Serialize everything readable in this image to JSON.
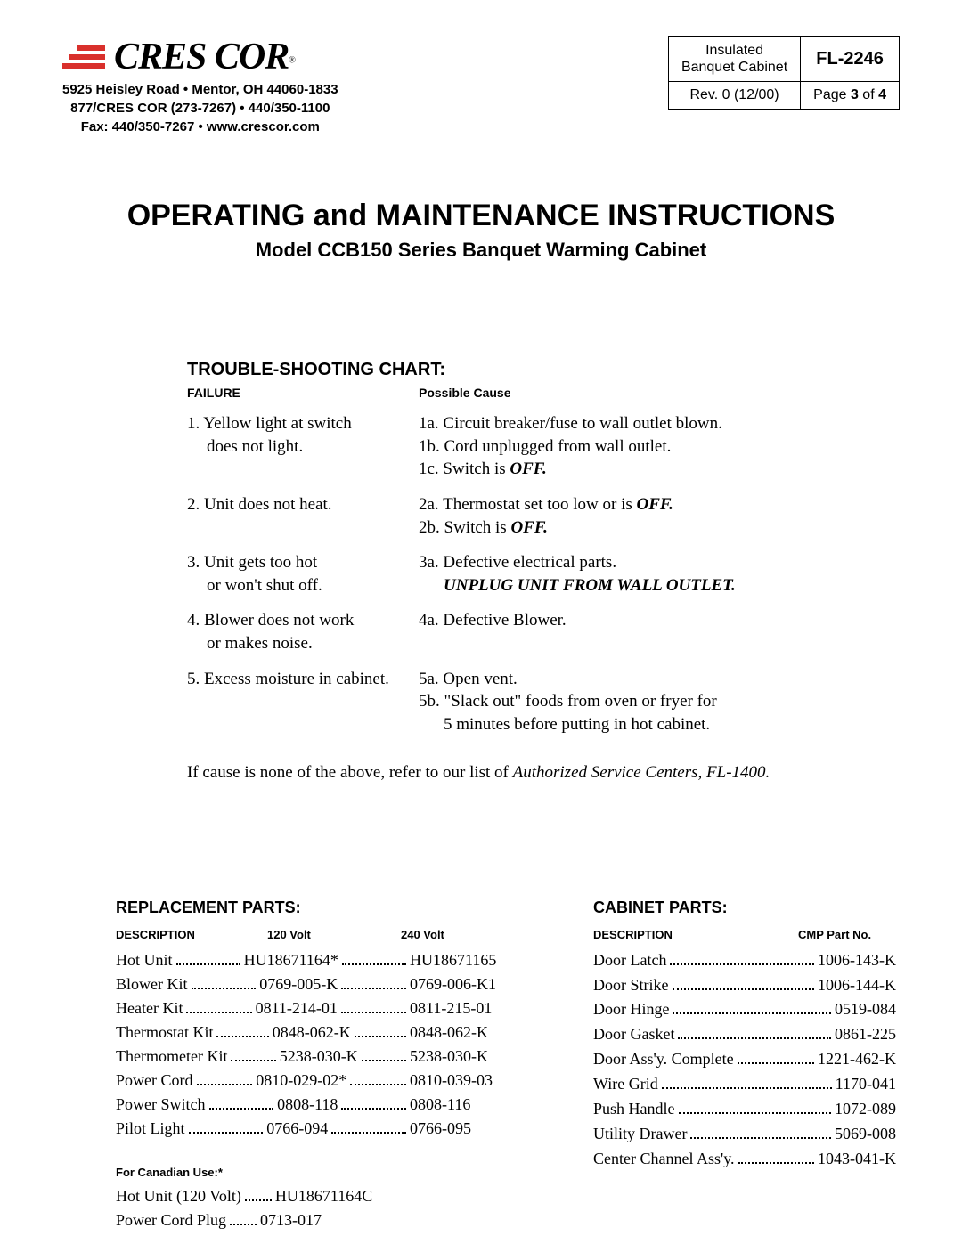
{
  "company": {
    "name": "CRES COR",
    "reg": "®",
    "addr1": "5925 Heisley Road • Mentor, OH 44060-1833",
    "addr2": "877/CRES COR (273-7267) • 440/350-1100",
    "addr3": "Fax: 440/350-7267 • www.crescor.com"
  },
  "docbox": {
    "product": "Insulated\nBanquet Cabinet",
    "doc_no": "FL-2246",
    "rev": "Rev. 0 (12/00)",
    "page": "Page 3 of 4"
  },
  "title": {
    "main": "OPERATING and MAINTENANCE INSTRUCTIONS",
    "sub": "Model CCB150 Series Banquet Warming Cabinet"
  },
  "ts": {
    "heading": "TROUBLE-SHOOTING CHART:",
    "col_failure": "FAILURE",
    "col_cause": "Possible Cause",
    "rows": [
      {
        "fail_a": "1. Yellow light at switch",
        "fail_b": "does not light.",
        "causes": [
          "1a. Circuit breaker/fuse to wall outlet blown.",
          "1b. Cord unplugged from wall outlet.",
          "1c. Switch is "
        ],
        "off3": "OFF."
      },
      {
        "fail_a": "2. Unit does not heat.",
        "causes": [
          "2a. Thermostat set too low or is ",
          "2b. Switch is "
        ],
        "off1": "OFF.",
        "off2": "OFF."
      },
      {
        "fail_a": "3. Unit gets too hot",
        "fail_b": "or won't shut off.",
        "causes": [
          "3a. Defective electrical parts."
        ],
        "unplug": "UNPLUG UNIT FROM WALL OUTLET."
      },
      {
        "fail_a": "4. Blower does not work",
        "fail_b": "or makes noise.",
        "causes": [
          "4a. Defective Blower."
        ]
      },
      {
        "fail_a": "5. Excess moisture in cabinet.",
        "causes": [
          "5a. Open vent.",
          "5b. \"Slack out\" foods from oven or fryer for",
          "5 minutes before putting in hot cabinet."
        ]
      }
    ],
    "refer_a": "If cause is none of the above, refer to our list of ",
    "refer_b": "Authorized Service Centers, FL-1400."
  },
  "replacement": {
    "heading": "REPLACEMENT PARTS:",
    "h_desc": "DESCRIPTION",
    "h_120": "120 Volt",
    "h_240": "240 Volt",
    "rows": [
      {
        "d": "Hot Unit",
        "a": "HU18671164*",
        "b": "HU18671165"
      },
      {
        "d": "Blower Kit",
        "a": "0769-005-K",
        "b": "0769-006-K1"
      },
      {
        "d": "Heater Kit",
        "a": "0811-214-01",
        "b": "0811-215-01"
      },
      {
        "d": "Thermostat Kit",
        "a": "0848-062-K",
        "b": "0848-062-K"
      },
      {
        "d": "Thermometer Kit",
        "a": "5238-030-K",
        "b": "5238-030-K"
      },
      {
        "d": "Power Cord",
        "a": "0810-029-02*",
        "b": "0810-039-03"
      },
      {
        "d": "Power Switch",
        "a": "0808-118",
        "b": "0808-116"
      },
      {
        "d": "Pilot Light",
        "a": "0766-094",
        "b": "0766-095"
      }
    ],
    "can_heading": "For Canadian Use:*",
    "can_rows": [
      {
        "d": "Hot Unit (120 Volt)",
        "a": "HU18671164C"
      },
      {
        "d": "Power Cord Plug",
        "a": "0713-017"
      }
    ]
  },
  "cabinet": {
    "heading": "CABINET PARTS:",
    "h_desc": "DESCRIPTION",
    "h_cmp": "CMP Part No.",
    "rows": [
      {
        "d": "Door Latch",
        "p": "1006-143-K"
      },
      {
        "d": "Door Strike",
        "p": "1006-144-K"
      },
      {
        "d": "Door Hinge",
        "p": "0519-084"
      },
      {
        "d": "Door Gasket",
        "p": "0861-225"
      },
      {
        "d": "Door Ass'y. Complete",
        "p": "1221-462-K"
      },
      {
        "d": "Wire Grid",
        "p": "1170-041"
      },
      {
        "d": "Push Handle",
        "p": "1072-089"
      },
      {
        "d": "Utility Drawer",
        "p": "5069-008"
      },
      {
        "d": "Center Channel Ass'y.",
        "p": "1043-041-K"
      }
    ]
  }
}
